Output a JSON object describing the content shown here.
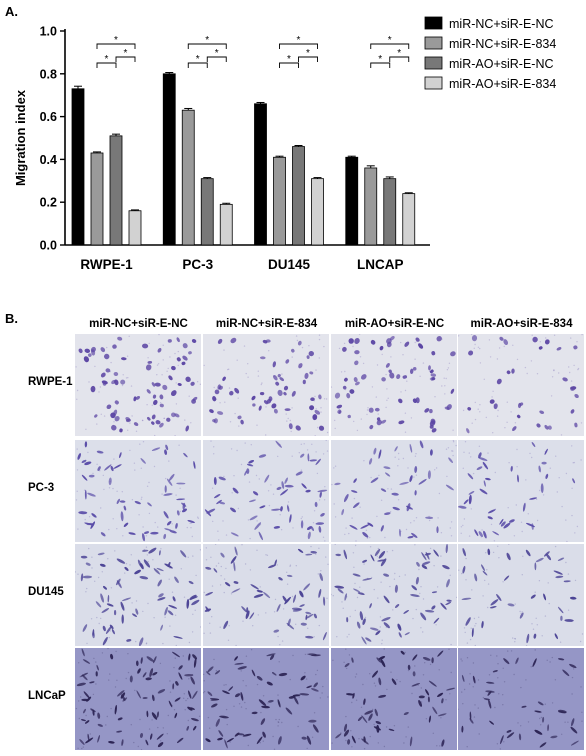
{
  "panel_a_label": "A.",
  "panel_b_label": "B.",
  "chart_data": {
    "type": "bar",
    "categories": [
      "RWPE-1",
      "PC-3",
      "DU145",
      "LNCAP"
    ],
    "series": [
      {
        "name": "miR-NC+siR-E-NC",
        "values": [
          0.73,
          0.8,
          0.66,
          0.41
        ],
        "errors": [
          0.012,
          0.006,
          0.006,
          0.005
        ],
        "color": "#000000"
      },
      {
        "name": "miR-NC+siR-E-834",
        "values": [
          0.43,
          0.63,
          0.41,
          0.36
        ],
        "errors": [
          0.005,
          0.008,
          0.005,
          0.01
        ],
        "color": "#9a9a9a"
      },
      {
        "name": "miR-AO+siR-E-NC",
        "values": [
          0.51,
          0.31,
          0.46,
          0.31
        ],
        "errors": [
          0.008,
          0.005,
          0.005,
          0.008
        ],
        "color": "#787878"
      },
      {
        "name": "miR-AO+siR-E-834",
        "values": [
          0.16,
          0.19,
          0.31,
          0.24
        ],
        "errors": [
          0.004,
          0.005,
          0.005,
          0.004
        ],
        "color": "#d2d2d2"
      }
    ],
    "ylabel": "Migration index",
    "xlabel": "",
    "ylim": [
      0,
      1.0
    ],
    "yticks": [
      "0.0",
      "0.2",
      "0.4",
      "0.6",
      "0.8",
      "1.0"
    ],
    "significance_mark": "*",
    "legend_position": "top-right"
  },
  "micrographs": {
    "columns": [
      "miR-NC+siR-E-NC",
      "miR-NC+siR-E-834",
      "miR-AO+siR-E-NC",
      "miR-AO+siR-E-834"
    ],
    "rows": [
      {
        "label": "RWPE-1",
        "background": "#e3e4ec",
        "stain": "#5c46a4",
        "cell_counts": [
          70,
          55,
          60,
          30
        ],
        "shape": "round"
      },
      {
        "label": "PC-3",
        "background": "#dcdfea",
        "stain": "#5a4da8",
        "cell_counts": [
          55,
          50,
          40,
          35
        ],
        "shape": "spindle"
      },
      {
        "label": "DU145",
        "background": "#dadde9",
        "stain": "#4c4496",
        "cell_counts": [
          60,
          50,
          55,
          35
        ],
        "shape": "spindle"
      },
      {
        "label": "LNCaP",
        "background": "#9596c6",
        "stain": "#2c2454",
        "cell_counts": [
          75,
          55,
          50,
          35
        ],
        "shape": "spindle"
      }
    ]
  }
}
